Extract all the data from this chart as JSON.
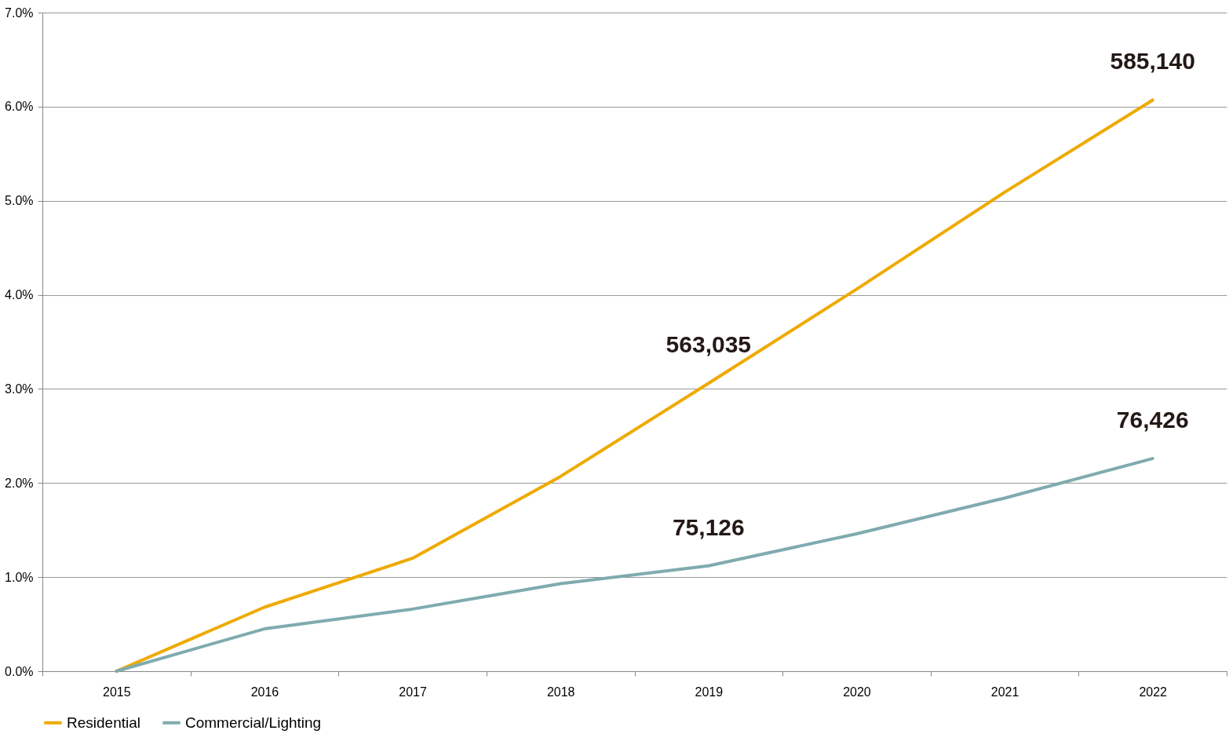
{
  "chart_data": {
    "type": "line",
    "categories": [
      "2015",
      "2016",
      "2017",
      "2018",
      "2019",
      "2020",
      "2021",
      "2022"
    ],
    "series": [
      {
        "name": "Residential",
        "color": "#eeaa00",
        "values": [
          0,
          0.68,
          1.2,
          2.07,
          3.06,
          4.06,
          5.09,
          6.07
        ]
      },
      {
        "name": "Commercial/Lighting",
        "color": "#7fabaf",
        "values": [
          0,
          0.45,
          0.66,
          0.93,
          1.12,
          1.46,
          1.84,
          2.26
        ]
      }
    ],
    "ylim": [
      0,
      7
    ],
    "yticks": [
      {
        "value": 0,
        "label": "0.0%"
      },
      {
        "value": 1,
        "label": "1.0%"
      },
      {
        "value": 2,
        "label": "2.0%"
      },
      {
        "value": 3,
        "label": "3.0%"
      },
      {
        "value": 4,
        "label": "4.0%"
      },
      {
        "value": 5,
        "label": "5.0%"
      },
      {
        "value": 6,
        "label": "6.0%"
      },
      {
        "value": 7,
        "label": "7.0%"
      }
    ],
    "annotations": [
      {
        "text": "563,035",
        "x": "2019",
        "y": 3.06
      },
      {
        "text": "585,140",
        "x": "2022",
        "y": 6.07
      },
      {
        "text": "75,126",
        "x": "2019",
        "y": 1.12
      },
      {
        "text": "76,426",
        "x": "2022",
        "y": 2.26
      }
    ],
    "grid": "y",
    "legend": "bottom",
    "marker": "none",
    "line_style": "solid"
  }
}
